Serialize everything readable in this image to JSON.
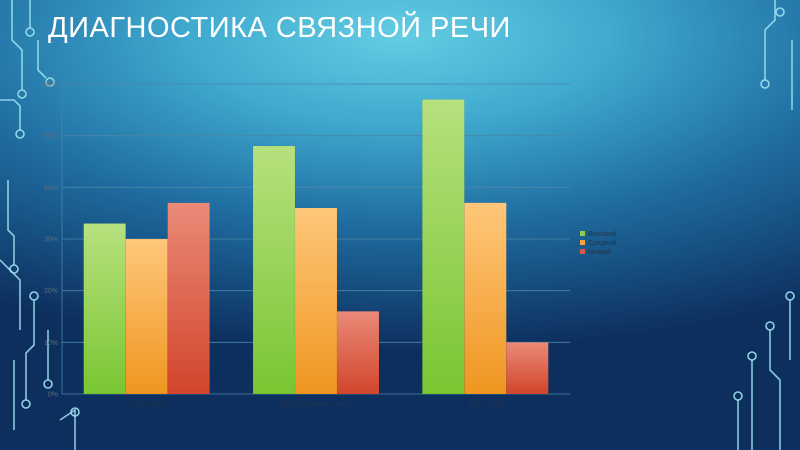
{
  "slide": {
    "title": "ДИАГНОСТИКА СВЯЗНОЙ РЕЧИ"
  },
  "colors": {
    "high": "#8dd14a",
    "mid": "#f5a43a",
    "low": "#dc5a44"
  },
  "chart_data": {
    "type": "bar",
    "categories": [
      "2012-2013",
      "2012-2013(конец года)",
      "2013-2014"
    ],
    "series": [
      {
        "name": "Высокий",
        "values": [
          33,
          48,
          57
        ]
      },
      {
        "name": "Средний",
        "values": [
          30,
          36,
          37
        ]
      },
      {
        "name": "Низкий",
        "values": [
          37,
          16,
          10
        ]
      }
    ],
    "ylim": [
      0,
      60
    ],
    "yticks": [
      "0%",
      "10%",
      "20%",
      "30%",
      "40%",
      "50%",
      "60%"
    ],
    "grid": true,
    "legend_position": "right"
  }
}
